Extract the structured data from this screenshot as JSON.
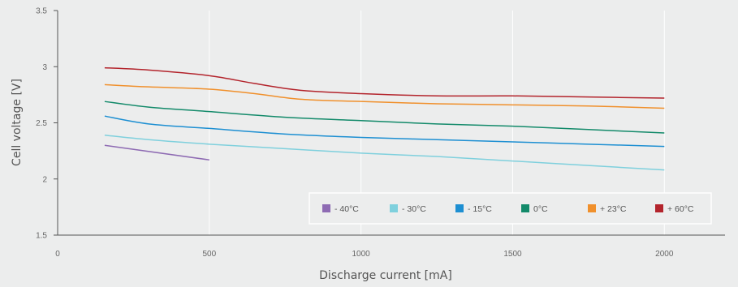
{
  "chart_data": {
    "type": "line",
    "title": "",
    "xlabel": "Discharge current [mA]",
    "ylabel": "Cell voltage [V]",
    "xlim": [
      0,
      2200
    ],
    "ylim": [
      1.5,
      3.5
    ],
    "xticks": [
      0,
      500,
      1000,
      1500,
      2000
    ],
    "xtick_labels": [
      "0",
      "500",
      "1000",
      "1500",
      "2000"
    ],
    "yticks": [
      1.5,
      2,
      2.5,
      3,
      3.5
    ],
    "ytick_labels": [
      "1.5",
      "2",
      "2.5",
      "3",
      "3.5"
    ],
    "grid": "vertical",
    "legend_position": "bottom-right",
    "series": [
      {
        "name": "- 40°C",
        "color": "#8e6bb3",
        "x": [
          155,
          500
        ],
        "y": [
          2.3,
          2.17
        ]
      },
      {
        "name": "- 30°C",
        "color": "#7fd0dd",
        "x": [
          155,
          300,
          500,
          750,
          1000,
          1250,
          1500,
          1750,
          2000
        ],
        "y": [
          2.39,
          2.35,
          2.31,
          2.27,
          2.23,
          2.2,
          2.16,
          2.12,
          2.08
        ]
      },
      {
        "name": "- 15°C",
        "color": "#1d8fd2",
        "x": [
          155,
          300,
          500,
          750,
          1000,
          1250,
          1500,
          1750,
          2000
        ],
        "y": [
          2.56,
          2.49,
          2.45,
          2.4,
          2.37,
          2.35,
          2.33,
          2.31,
          2.29
        ]
      },
      {
        "name": "0°C",
        "color": "#138a6a",
        "x": [
          155,
          300,
          500,
          750,
          1000,
          1250,
          1500,
          1750,
          2000
        ],
        "y": [
          2.69,
          2.64,
          2.6,
          2.55,
          2.52,
          2.49,
          2.47,
          2.44,
          2.41
        ]
      },
      {
        "name": "+ 23°C",
        "color": "#f0902c",
        "x": [
          155,
          300,
          500,
          650,
          800,
          1000,
          1250,
          1500,
          1750,
          2000
        ],
        "y": [
          2.84,
          2.82,
          2.8,
          2.76,
          2.71,
          2.69,
          2.67,
          2.66,
          2.65,
          2.63
        ]
      },
      {
        "name": "+ 60°C",
        "color": "#b3242c",
        "x": [
          155,
          300,
          500,
          650,
          800,
          1000,
          1250,
          1500,
          1750,
          2000
        ],
        "y": [
          2.99,
          2.97,
          2.92,
          2.85,
          2.79,
          2.76,
          2.74,
          2.74,
          2.73,
          2.72
        ]
      }
    ]
  }
}
